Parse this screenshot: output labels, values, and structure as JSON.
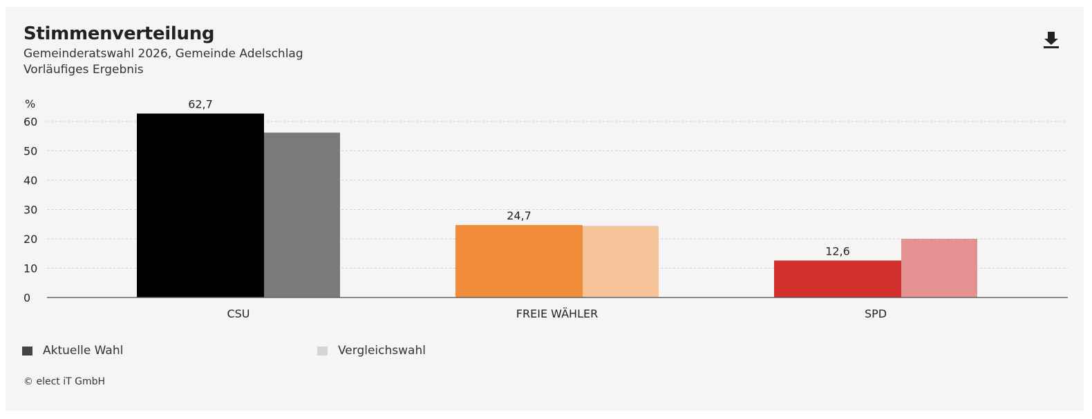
{
  "header": {
    "title": "Stimmenverteilung",
    "subtitle_1": "Gemeinderatswahl 2026, Gemeinde Adelschlag",
    "subtitle_2": "Vorläufiges Ergebnis",
    "download_icon": "download-icon"
  },
  "legend": {
    "items": [
      {
        "label": "Aktuelle Wahl",
        "color": "#444444"
      },
      {
        "label": "Vergleichswahl",
        "color": "#d4d4d4"
      }
    ]
  },
  "footer": {
    "copyright": "© elect iT GmbH"
  },
  "chart_data": {
    "type": "bar",
    "ylabel": "%",
    "ylim": [
      0,
      60
    ],
    "yticks": [
      0,
      10,
      20,
      30,
      40,
      50,
      60
    ],
    "grid": true,
    "legend_position": "bottom-left",
    "categories": [
      "CSU",
      "FREIE WÄHLER",
      "SPD"
    ],
    "series": [
      {
        "name": "Aktuelle Wahl",
        "values": [
          62.7,
          24.7,
          12.6
        ],
        "labels": [
          "62,7",
          "24,7",
          "12,6"
        ],
        "colors": [
          "#000000",
          "#f08c3a",
          "#d32f2c"
        ]
      },
      {
        "name": "Vergleichswahl",
        "values": [
          56.2,
          24.4,
          20.0
        ],
        "colors": [
          "#7a7a7a",
          "#f5c397",
          "#e39291"
        ]
      }
    ]
  }
}
